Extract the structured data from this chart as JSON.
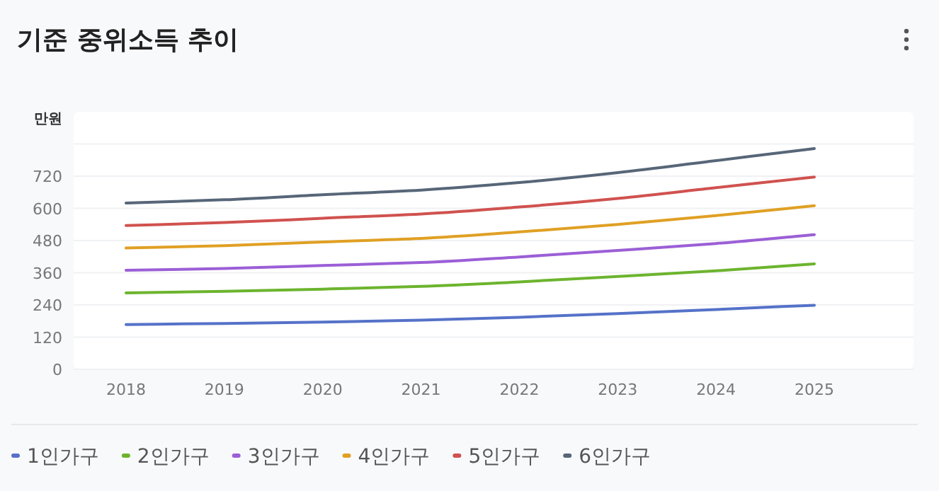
{
  "chart_data": {
    "type": "line",
    "title": "기준 중위소득 추이",
    "ylabel": "만원",
    "categories": [
      "2018",
      "2019",
      "2020",
      "2021",
      "2022",
      "2023",
      "2024",
      "2025"
    ],
    "series": [
      {
        "name": "1인가구",
        "color": "#5572c8",
        "values": [
          167,
          171,
          176,
          183,
          194,
          208,
          223,
          239
        ]
      },
      {
        "name": "2인가구",
        "color": "#6cb42e",
        "values": [
          285,
          291,
          299,
          309,
          326,
          346,
          367,
          393
        ]
      },
      {
        "name": "3인가구",
        "color": "#9b5fd6",
        "values": [
          369,
          376,
          387,
          398,
          419,
          443,
          469,
          502
        ]
      },
      {
        "name": "4인가구",
        "color": "#e0a024",
        "values": [
          452,
          461,
          475,
          488,
          512,
          540,
          573,
          610
        ]
      },
      {
        "name": "5인가구",
        "color": "#d0524f",
        "values": [
          536,
          547,
          563,
          579,
          605,
          637,
          677,
          717
        ]
      },
      {
        "name": "6인가구",
        "color": "#576678",
        "values": [
          620,
          632,
          651,
          668,
          696,
          733,
          778,
          823
        ]
      }
    ],
    "ylim": [
      0,
      960
    ],
    "yticks": [
      0,
      120,
      240,
      360,
      480,
      600,
      720,
      {
        "value": 840,
        "label": null
      }
    ],
    "grid": "y",
    "legend": "bottom",
    "line_style": "solid"
  }
}
